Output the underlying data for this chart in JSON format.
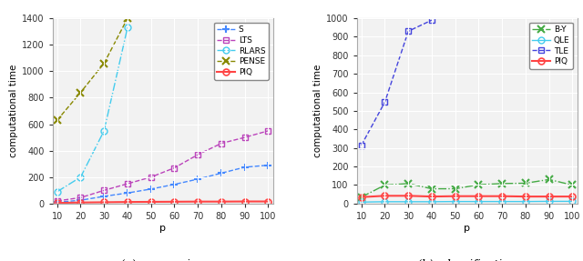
{
  "p": [
    10,
    20,
    30,
    40,
    50,
    60,
    70,
    80,
    90,
    100
  ],
  "reg": {
    "S": [
      10,
      25,
      55,
      80,
      110,
      145,
      185,
      230,
      275,
      290
    ],
    "LTS": [
      20,
      45,
      100,
      150,
      200,
      270,
      370,
      455,
      500,
      550
    ],
    "RLARS": [
      90,
      200,
      550,
      1330,
      null,
      null,
      null,
      null,
      null,
      null
    ],
    "PENSE": [
      630,
      840,
      1060,
      1400,
      null,
      null,
      null,
      null,
      null,
      null
    ],
    "PIQ": [
      5,
      8,
      10,
      12,
      13,
      14,
      15,
      15,
      16,
      16
    ]
  },
  "cls": {
    "B-Y": [
      35,
      100,
      108,
      80,
      80,
      102,
      108,
      110,
      130,
      100
    ],
    "QLE": [
      8,
      10,
      10,
      10,
      11,
      11,
      11,
      11,
      12,
      12
    ],
    "TLE": [
      315,
      548,
      930,
      990,
      null,
      null,
      null,
      null,
      null,
      null
    ],
    "PIQ": [
      35,
      42,
      42,
      38,
      40,
      40,
      40,
      38,
      38,
      38
    ]
  },
  "reg_ylim": [
    0,
    1400
  ],
  "cls_ylim": [
    0,
    1000
  ],
  "reg_yticks": [
    0,
    200,
    400,
    600,
    800,
    1000,
    1200,
    1400
  ],
  "cls_yticks": [
    0,
    100,
    200,
    300,
    400,
    500,
    600,
    700,
    800,
    900,
    1000
  ],
  "xticks": [
    10,
    20,
    30,
    40,
    50,
    60,
    70,
    80,
    90,
    100
  ],
  "colors": {
    "S": "#4488FF",
    "LTS": "#BB44BB",
    "RLARS": "#44CCEE",
    "PENSE": "#888800",
    "PIQ_reg": "#FF4444",
    "B-Y": "#44AA44",
    "QLE": "#44CCEE",
    "TLE": "#4444DD",
    "PIQ_cls": "#FF4444"
  },
  "fig_width": 6.4,
  "fig_height": 2.87,
  "dpi": 100
}
